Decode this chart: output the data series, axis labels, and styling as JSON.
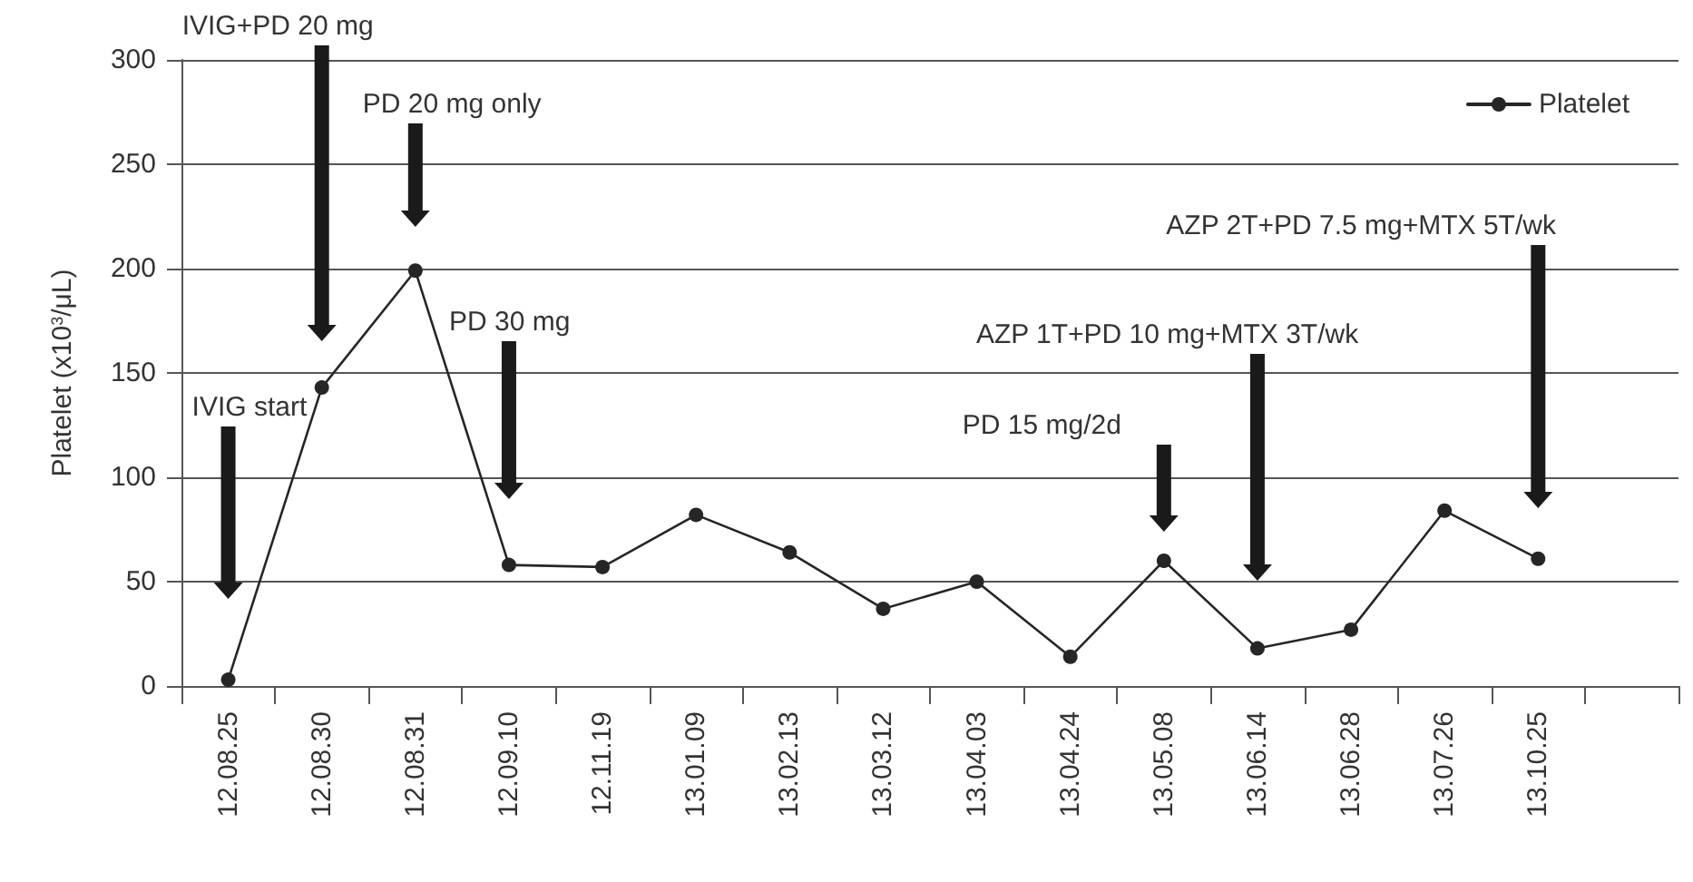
{
  "chart_data": {
    "type": "line",
    "ylabel": "Platelet (x10$^{3}$/μL)",
    "categories": [
      "12.08.25",
      "12.08.30",
      "12.08.31",
      "12.09.10",
      "12.11.19",
      "13.01.09",
      "13.02.13",
      "13.03.12",
      "13.04.03",
      "13.04.24",
      "13.05.08",
      "13.06.14",
      "13.06.28",
      "13.07.26",
      "13.10.25",
      null
    ],
    "series": [
      {
        "name": "Platelet",
        "color": "#262626",
        "values": [
          3,
          143,
          199,
          58,
          57,
          82,
          64,
          37,
          50,
          14,
          60,
          18,
          27,
          84,
          61,
          null
        ]
      }
    ],
    "ylim": [
      0,
      300
    ],
    "yticks": [
      0,
      50,
      100,
      150,
      200,
      250,
      300
    ],
    "grid": "y",
    "legend": "top right",
    "marker": "circle",
    "line_style": "solid",
    "annotations": [
      "IVIG start",
      "IVIG+PD 20 mg",
      "PD 20 mg only",
      "PD 30 mg",
      "PD 15 mg/2d",
      "AZP 1T+PD 10 mg+MTX 3T/wk",
      "AZP 2T+PD 7.5 mg+MTX 5T/wk"
    ]
  }
}
